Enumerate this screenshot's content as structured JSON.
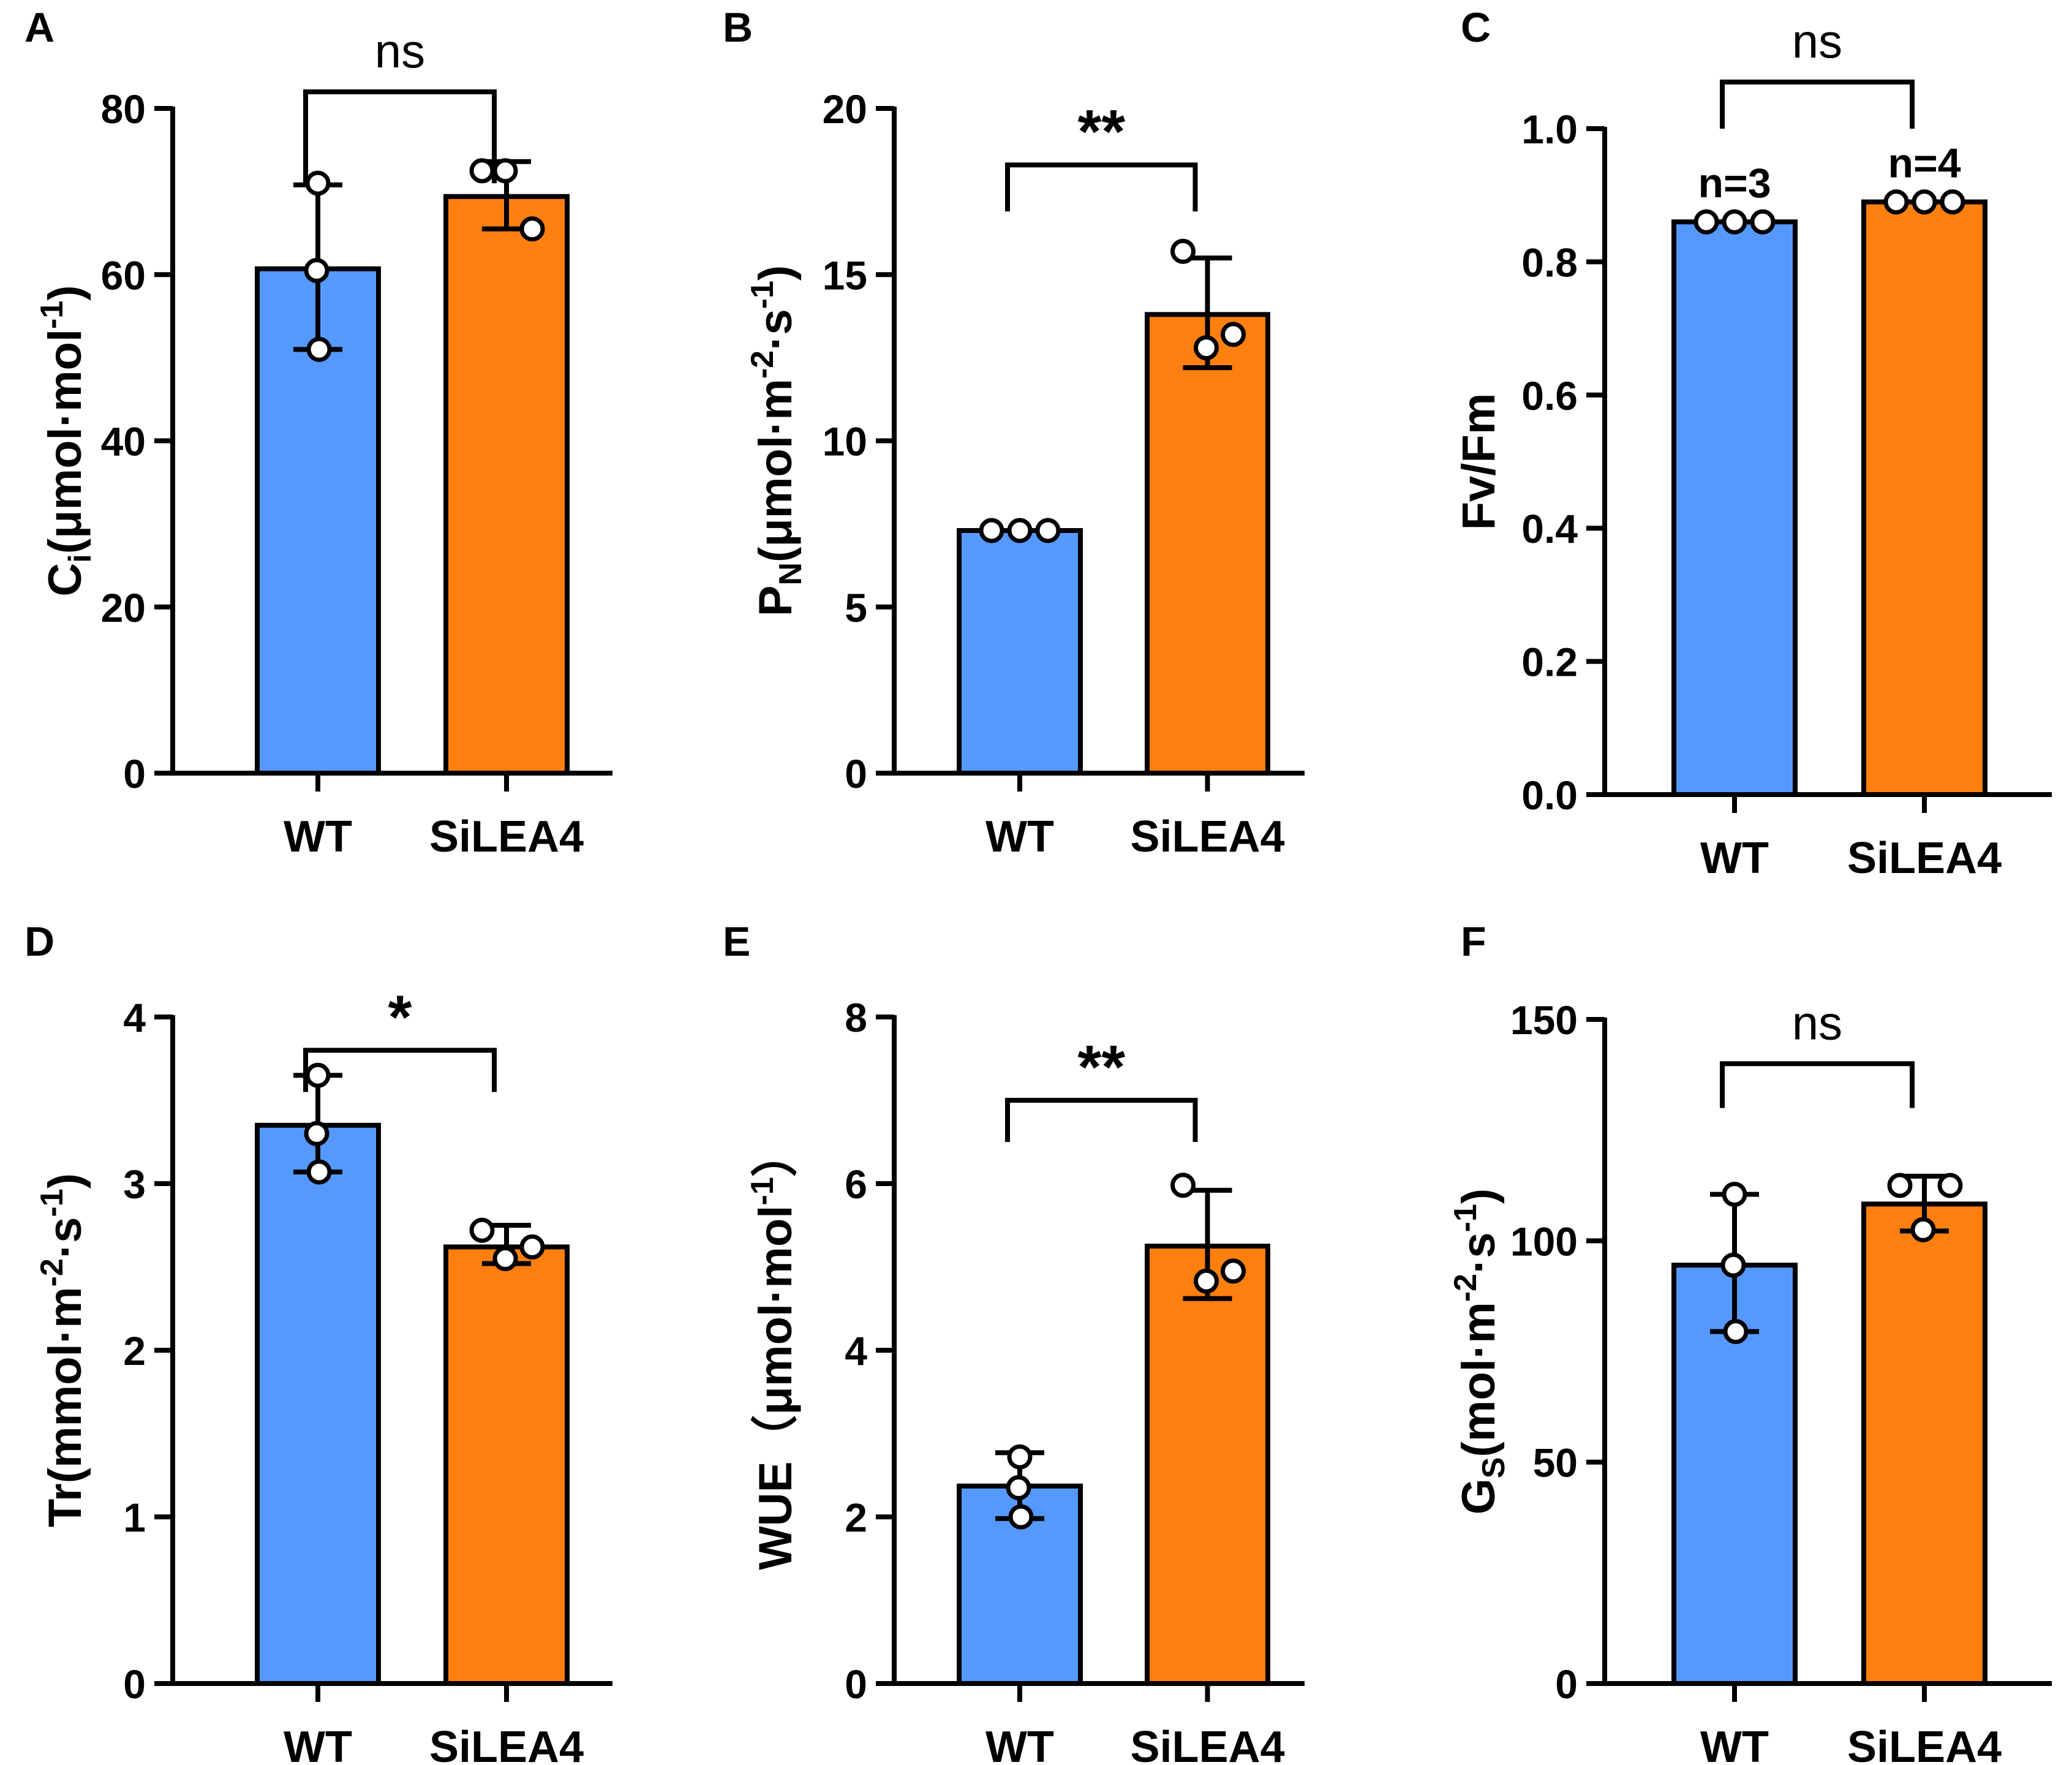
{
  "colors": {
    "wt": "#5599ff",
    "silea4": "#ff7f0f",
    "stroke": "#000000"
  },
  "chart_data": [
    {
      "panel": "A",
      "type": "bar",
      "categories": [
        "WT",
        "SiLEA4"
      ],
      "values": [
        60.7,
        69.4
      ],
      "errors": [
        [
          51,
          70.8
        ],
        [
          65.5,
          73.6
        ]
      ],
      "points": [
        [
          71,
          60.5,
          51
        ],
        [
          72.5,
          72.5,
          65.5
        ]
      ],
      "ylim": [
        0,
        80
      ],
      "yticks": [
        "0",
        "20",
        "40",
        "60",
        "80"
      ],
      "ylabel": {
        "main": "C",
        "sub": "i",
        "mid": "(μmol·mol",
        "sup": "-1",
        "tail": ")"
      },
      "significance": "ns",
      "bracket_levels": [
        71,
        82
      ],
      "n_labels": []
    },
    {
      "panel": "B",
      "type": "bar",
      "categories": [
        "WT",
        "SiLEA4"
      ],
      "values": [
        7.3,
        13.8
      ],
      "errors": [
        [
          7.3,
          7.3
        ],
        [
          12.2,
          15.5
        ]
      ],
      "points": [
        [
          7.3,
          7.3,
          7.3
        ],
        [
          15.7,
          12.8,
          13.2
        ]
      ],
      "ylim": [
        0,
        20
      ],
      "yticks": [
        "0",
        "5",
        "10",
        "15",
        "20"
      ],
      "ylabel": {
        "main": "P",
        "sub": "N",
        "mid": "(μmol·m",
        "sup": "-2",
        "mid2": "·s",
        "sup2": "-1",
        "tail": ")"
      },
      "significance": "**",
      "bracket_levels": [
        16.9,
        18.3
      ],
      "n_labels": []
    },
    {
      "panel": "C",
      "type": "bar",
      "categories": [
        "WT",
        "SiLEA4"
      ],
      "values": [
        0.86,
        0.89
      ],
      "errors": [
        [
          0.86,
          0.86
        ],
        [
          0.89,
          0.89
        ]
      ],
      "points": [
        [
          0.86,
          0.86,
          0.86
        ],
        [
          0.89,
          0.89,
          0.89
        ]
      ],
      "ylim": [
        0,
        1.0
      ],
      "yticks": [
        "0.0",
        "0.2",
        "0.4",
        "0.6",
        "0.8",
        "1.0"
      ],
      "ylabel": {
        "main": "Fv/Fm"
      },
      "significance": "ns",
      "bracket_levels": [
        1.0,
        1.07
      ],
      "n_labels": [
        "n=3",
        "n=4"
      ]
    },
    {
      "panel": "D",
      "type": "bar",
      "categories": [
        "WT",
        "SiLEA4"
      ],
      "values": [
        3.35,
        2.62
      ],
      "errors": [
        [
          3.07,
          3.65
        ],
        [
          2.52,
          2.75
        ]
      ],
      "points": [
        [
          3.65,
          3.3,
          3.07
        ],
        [
          2.72,
          2.55,
          2.62
        ]
      ],
      "ylim": [
        0,
        4
      ],
      "yticks": [
        "0",
        "1",
        "2",
        "3",
        "4"
      ],
      "ylabel": {
        "main": "Tr",
        "mid": "(mmol·m",
        "sup": "-2",
        "mid2": "·s",
        "sup2": "-1",
        "tail": ")"
      },
      "significance": "*",
      "bracket_levels": [
        3.55,
        3.8
      ],
      "n_labels": []
    },
    {
      "panel": "E",
      "type": "bar",
      "categories": [
        "WT",
        "SiLEA4"
      ],
      "values": [
        2.37,
        5.25
      ],
      "errors": [
        [
          1.98,
          2.77
        ],
        [
          4.62,
          5.92
        ]
      ],
      "points": [
        [
          2.72,
          2.35,
          2.0
        ],
        [
          5.98,
          4.83,
          4.95
        ]
      ],
      "ylim": [
        0,
        8
      ],
      "yticks": [
        "0",
        "2",
        "4",
        "6",
        "8"
      ],
      "ylabel": {
        "main": "WUE",
        "mid": "（μmol·mol",
        "sup": "-1",
        "tail": "）"
      },
      "significance": "**",
      "bracket_levels": [
        6.5,
        7.0
      ],
      "n_labels": []
    },
    {
      "panel": "F",
      "type": "bar",
      "categories": [
        "WT",
        "SiLEA4"
      ],
      "values": [
        94.5,
        108.3
      ],
      "errors": [
        [
          79.5,
          110.5
        ],
        [
          102.2,
          114.6
        ]
      ],
      "points": [
        [
          110.5,
          94.5,
          79.5
        ],
        [
          112.5,
          102.5,
          112.5
        ]
      ],
      "ylim": [
        0,
        150
      ],
      "yticks": [
        "0",
        "50",
        "100",
        "150"
      ],
      "ylabel": {
        "main": "G",
        "sub": "S",
        "mid": "(mol·m",
        "sup": "-2",
        "mid2": "·s",
        "sup2": "-1",
        "tail": ")"
      },
      "significance": "ns",
      "bracket_levels": [
        130,
        140
      ],
      "n_labels": []
    }
  ]
}
